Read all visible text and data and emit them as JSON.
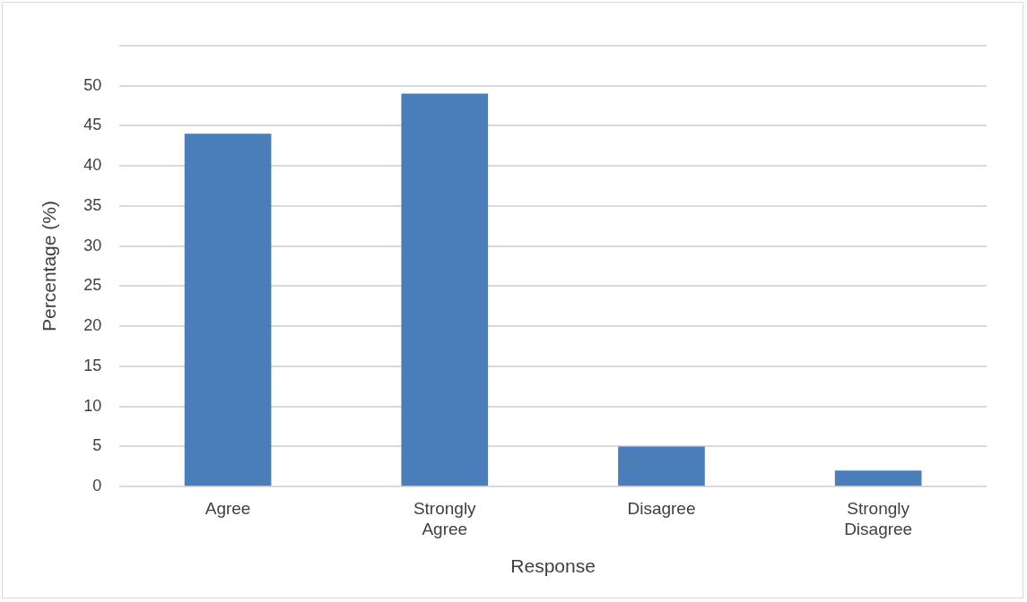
{
  "chart_data": {
    "type": "bar",
    "xlabel": "Response",
    "ylabel": "Percentage (%)",
    "categories": [
      "Agree",
      "Strongly Agree",
      "Disagree",
      "Strongly Disagree"
    ],
    "values": [
      44,
      49,
      5,
      2
    ],
    "color": "#4a7ebb",
    "ylim": [
      0,
      55
    ],
    "yticks": [
      0,
      5,
      10,
      15,
      20,
      25,
      30,
      35,
      40,
      45,
      50,
      {
        "value": 55,
        "label": null
      }
    ],
    "grid": "y",
    "legend": false
  }
}
